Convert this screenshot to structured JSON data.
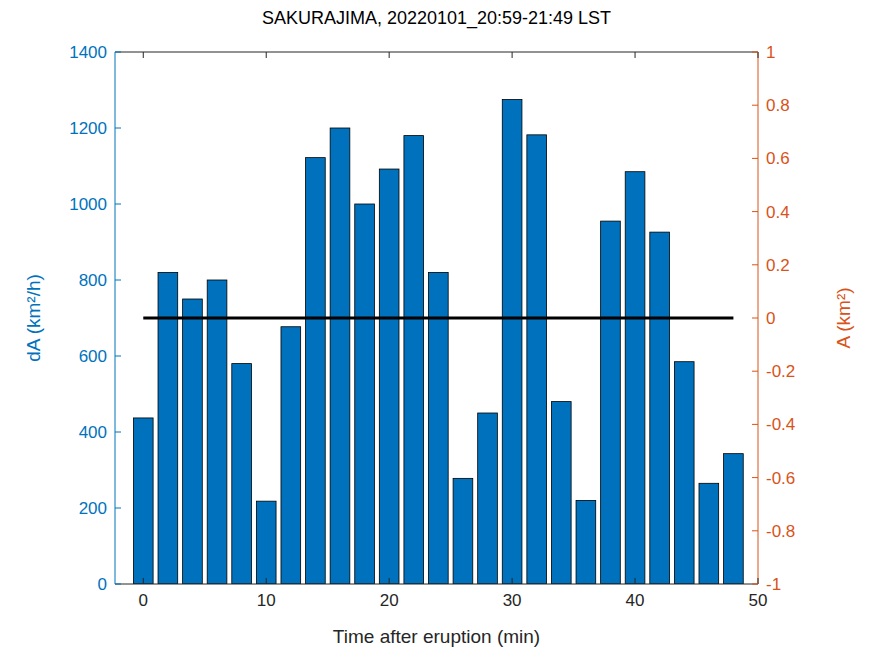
{
  "chart_data": {
    "type": "bar",
    "title": "SAKURAJIMA, 20220101_20:59-21:49 LST",
    "x_label": "Time after eruption (min)",
    "y_label": "dA (km²/h)",
    "y2_label": "A (km²)",
    "xlim": [
      -2.3,
      50
    ],
    "xticks": [
      0,
      10,
      20,
      30,
      40,
      50
    ],
    "ylim": [
      0,
      1400
    ],
    "yticks": [
      0,
      200,
      400,
      600,
      800,
      1000,
      1200,
      1400
    ],
    "y2lim": [
      -1,
      1
    ],
    "y2ticks": [
      -1,
      -0.8,
      -0.6,
      -0.4,
      -0.2,
      0,
      0.2,
      0.4,
      0.6,
      0.8,
      1
    ],
    "series": [
      {
        "type": "bar",
        "color": "#0072bd",
        "x": [
          0,
          2,
          4,
          6,
          8,
          10,
          12,
          14,
          16,
          18,
          20,
          22,
          24,
          26,
          28,
          30,
          32,
          34,
          36,
          38,
          40,
          42,
          44,
          46,
          48
        ],
        "values": [
          437,
          820,
          750,
          800,
          580,
          218,
          677,
          1122,
          1200,
          1000,
          1092,
          1180,
          820,
          278,
          450,
          1275,
          1182,
          480,
          220,
          955,
          1085,
          926,
          585,
          265,
          343
        ]
      },
      {
        "type": "line",
        "axis": "y2",
        "color": "#000000",
        "x": [
          0,
          48
        ],
        "values": [
          0,
          0
        ]
      }
    ]
  }
}
